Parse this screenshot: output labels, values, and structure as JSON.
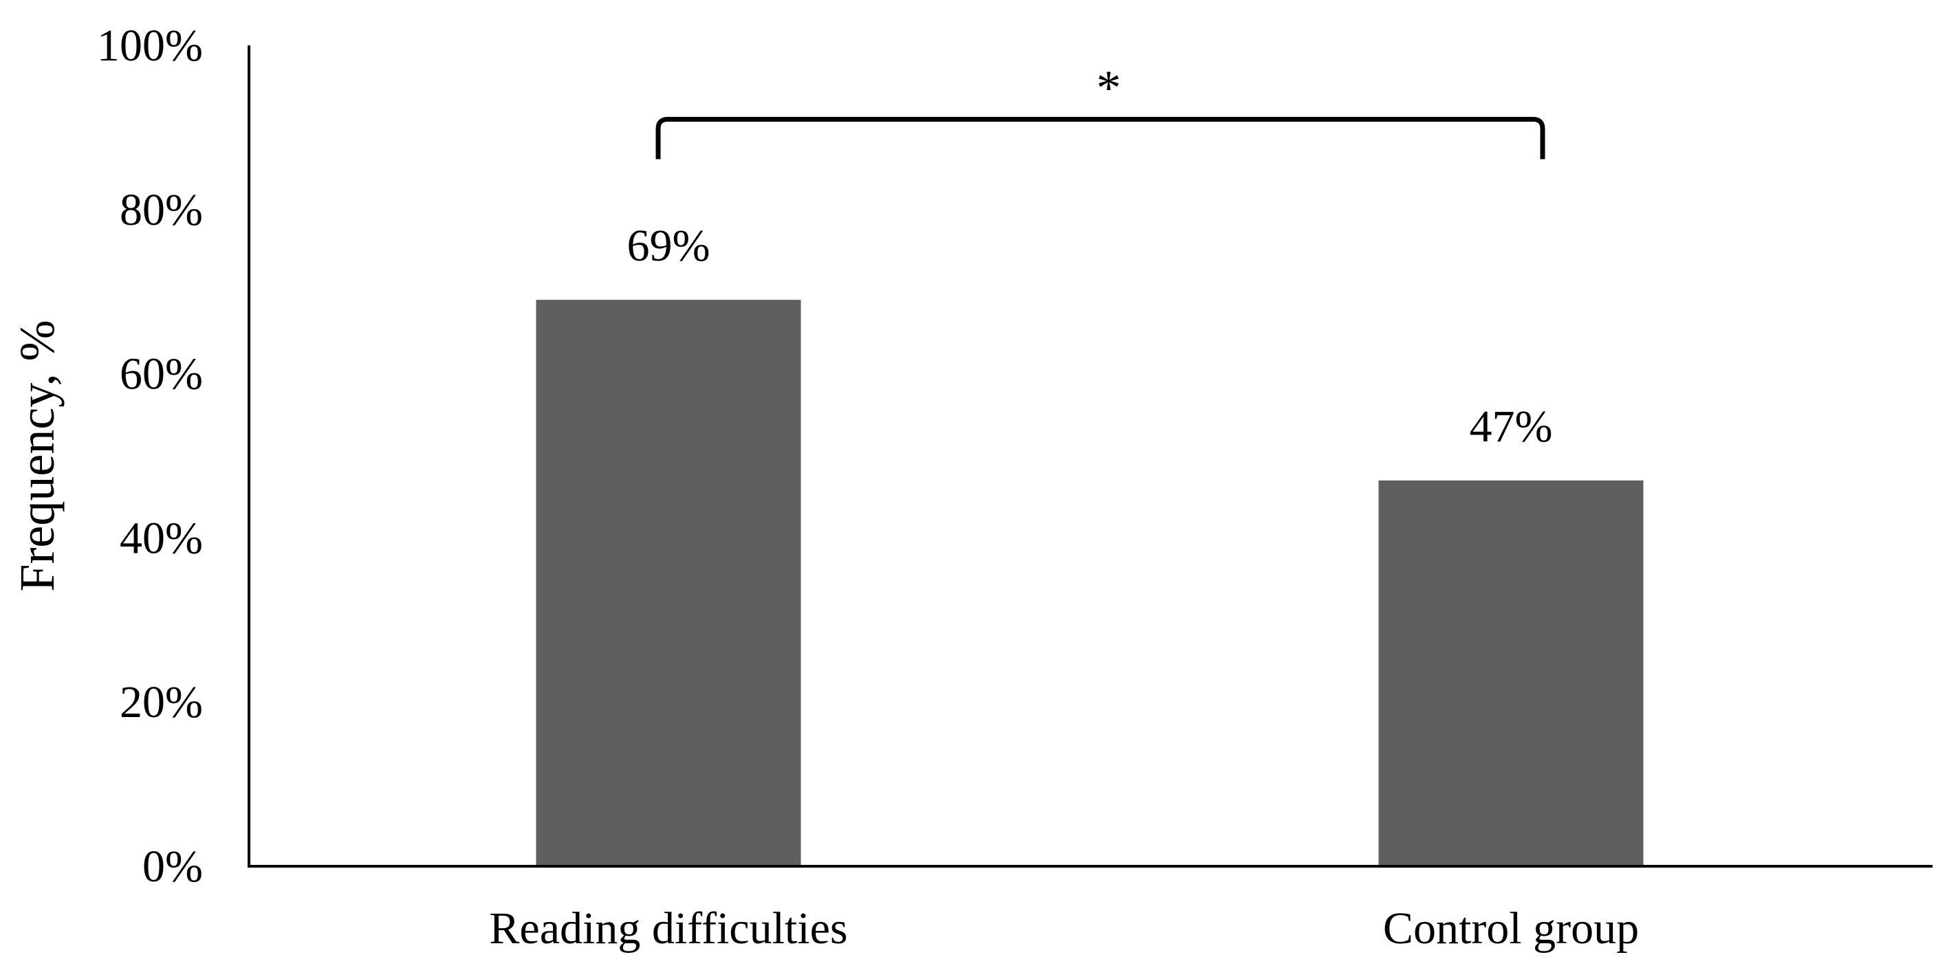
{
  "chart_data": {
    "type": "bar",
    "categories": [
      "Reading difficulties",
      "Control group"
    ],
    "values": [
      69,
      47
    ],
    "data_labels": [
      "69%",
      "47%"
    ],
    "ylabel": "Frequency, %",
    "ylim": [
      0,
      100
    ],
    "yticks": [
      0,
      20,
      40,
      60,
      80,
      100
    ],
    "ytick_labels": [
      "0%",
      "20%",
      "40%",
      "60%",
      "80%",
      "100%"
    ],
    "grid": false,
    "bar_color": "#5f5f5f",
    "significance": {
      "between": [
        "Reading difficulties",
        "Control group"
      ],
      "marker": "*",
      "bracket_level": 91
    }
  }
}
